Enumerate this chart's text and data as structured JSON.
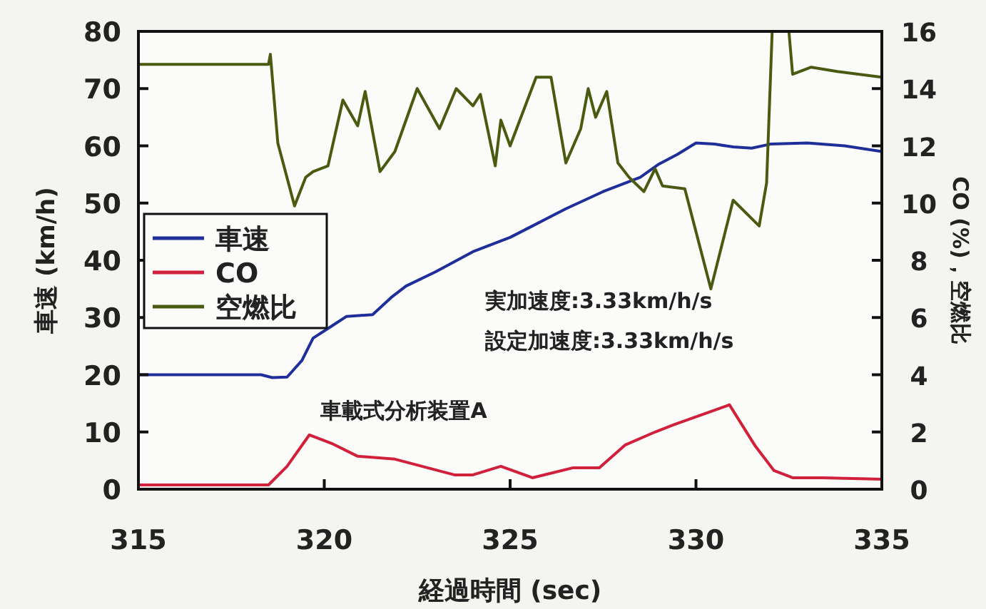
{
  "chart_data": {
    "type": "line",
    "xlabel": "経過時間 (sec)",
    "ylabel": "車速 (km/h)",
    "y2label": "CO (%)，空燃比",
    "xlim": [
      315,
      335
    ],
    "xticks": [
      315,
      320,
      325,
      330,
      335
    ],
    "ylim": [
      0,
      80
    ],
    "yticks": [
      0,
      10,
      20,
      30,
      40,
      50,
      60,
      70,
      80
    ],
    "y2lim": [
      0,
      16
    ],
    "y2ticks": [
      0,
      2,
      4,
      6,
      8,
      10,
      12,
      14,
      16
    ],
    "legend": "left",
    "line_style": "solid",
    "annotations": [
      "実加速度:3.33km/h/s",
      "設定加速度:3.33km/h/s",
      "車載式分析装置A"
    ],
    "series": [
      {
        "name": "車速",
        "color": "#1f2f9a",
        "x": [
          315,
          318.3,
          318.6,
          319.0,
          319.4,
          319.7,
          320.2,
          320.6,
          321.3,
          321.8,
          322.2,
          323,
          324,
          325,
          325.6,
          326.5,
          327.5,
          328.5,
          329,
          329.5,
          330,
          330.5,
          331,
          331.5,
          332,
          333,
          334,
          335
        ],
        "values": [
          20,
          20,
          19.5,
          19.6,
          22.5,
          26.4,
          28.5,
          30.2,
          30.5,
          33.5,
          35.5,
          38,
          41.5,
          44,
          46,
          49,
          52,
          54.5,
          56.8,
          58.5,
          60.5,
          60.3,
          59.8,
          59.6,
          60.3,
          60.5,
          60,
          59
        ]
      },
      {
        "name": "CO",
        "axis": "y2",
        "color": "#d0203a",
        "x": [
          315,
          318.5,
          319.0,
          319.6,
          320.2,
          320.9,
          321.9,
          323.5,
          324,
          324.75,
          325.6,
          326.7,
          327.4,
          328.1,
          328.9,
          329.4,
          330.8,
          330.9,
          331.6,
          332.1,
          332.6,
          333.4,
          335
        ],
        "values": [
          0.15,
          0.15,
          0.8,
          1.9,
          1.6,
          1.15,
          1.05,
          0.5,
          0.5,
          0.8,
          0.4,
          0.75,
          0.75,
          1.55,
          2.0,
          2.25,
          2.9,
          2.95,
          1.5,
          0.65,
          0.4,
          0.4,
          0.35
        ]
      },
      {
        "name": "空燃比",
        "axis": "y2",
        "color": "#4a5a10",
        "x": [
          315,
          318.5,
          318.55,
          318.75,
          319.2,
          319.5,
          319.7,
          320.1,
          320.5,
          320.9,
          321.1,
          321.5,
          321.9,
          322.5,
          323.1,
          323.55,
          324,
          324.2,
          324.6,
          324.75,
          325,
          325.7,
          326.1,
          326.5,
          326.9,
          327.1,
          327.3,
          327.6,
          327.9,
          328.2,
          328.6,
          328.9,
          329.1,
          329.7,
          330.4,
          331.0,
          331.7,
          331.9,
          332.05,
          332.5,
          332.6,
          333.1,
          333.8,
          335
        ],
        "values": [
          14.85,
          14.85,
          15.2,
          12.1,
          9.9,
          10.9,
          11.1,
          11.3,
          13.6,
          12.7,
          13.9,
          11.1,
          11.8,
          14.0,
          12.6,
          14.0,
          13.4,
          13.8,
          11.3,
          12.9,
          12.0,
          14.4,
          14.4,
          11.4,
          12.6,
          14.0,
          13.0,
          13.9,
          11.4,
          10.9,
          10.4,
          11.2,
          10.6,
          10.5,
          7.0,
          10.1,
          9.2,
          10.7,
          16,
          16,
          14.5,
          14.75,
          14.6,
          14.4
        ]
      }
    ]
  }
}
